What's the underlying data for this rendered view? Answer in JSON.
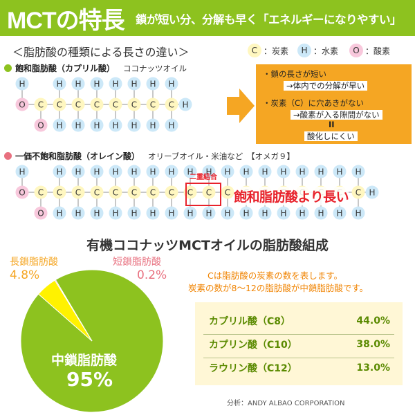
{
  "header": {
    "title": "MCTの特長",
    "subtitle": "鎖が短い分、分解も早く「エネルギーになりやすい」"
  },
  "section": {
    "title": "＜脂肪酸の種類による長さの違い＞"
  },
  "legend": [
    {
      "symbol": "C",
      "label": "：炭素",
      "color": "#fff7c0"
    },
    {
      "symbol": "H",
      "label": "：水素",
      "color": "#cce8f8"
    },
    {
      "symbol": "O",
      "label": "：酸素",
      "color": "#f8c8dc"
    }
  ],
  "caprylic": {
    "label": "飽和脂肪酸（カプリル酸）",
    "example": "ココナッツオイル",
    "dot_color": "#8dc21f",
    "carbons": 8
  },
  "info_box": {
    "line1": "・鎖の長さが短い",
    "line2": "→体内での分解が早い",
    "line3": "・炭素（C）に穴あきがない",
    "line4": "→酸素が入る隙間がない",
    "line5": "II",
    "line6": "酸化しにくい"
  },
  "oleic": {
    "label": "一価不飽和脂肪酸（オレイン酸）",
    "example": "オリーブオイル・米油など　【オメガ９】",
    "dot_color": "#e8707f",
    "double_bond_label": "二重結合",
    "longer_label": "飽和脂肪酸より長い",
    "carbons": 18
  },
  "symbols": {
    "c": "C",
    "h": "H",
    "o": "O"
  },
  "composition": {
    "title": "有機ココナッツMCTオイルの脂肪酸組成",
    "note1": "Cは脂肪酸の炭素の数を表します。",
    "note2": "炭素の数が8～12の脂肪酸が中鎖脂肪酸です。",
    "credit": "分析：ANDY ALBAO CORPORATION"
  },
  "chart_data": {
    "type": "pie",
    "slices": [
      {
        "label": "中鎖脂肪酸",
        "value": 95,
        "display": "95%",
        "color": "#8dc21f"
      },
      {
        "label": "長鎖脂肪酸",
        "value": 4.8,
        "display": "4.8%",
        "color": "#fff200"
      },
      {
        "label": "短鎖脂肪酸",
        "value": 0.2,
        "display": "0.2%",
        "color": "#e8707f"
      }
    ],
    "table": [
      {
        "name": "カプリル酸（C8）",
        "value": "44.0%"
      },
      {
        "name": "カプリン酸（C10）",
        "value": "38.0%"
      },
      {
        "name": "ラウリン酸（C12）",
        "value": "13.0%"
      }
    ]
  }
}
